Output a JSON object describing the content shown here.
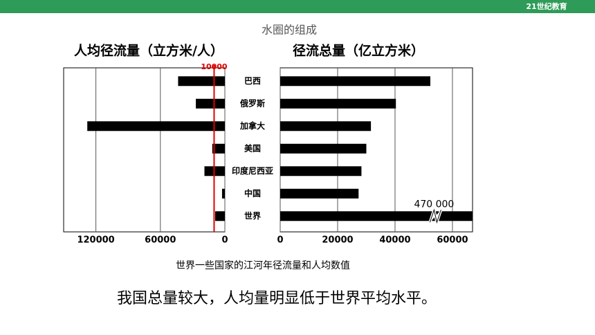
{
  "header": {
    "logo": "21世纪教育",
    "title": "水圈的组成"
  },
  "chart_data": [
    {
      "type": "bar",
      "orientation": "horizontal",
      "reversed": true,
      "title": "人均径流量（立方米/人）",
      "categories": [
        "巴西",
        "俄罗斯",
        "加拿大",
        "美国",
        "印度尼西亚",
        "中国",
        "世界"
      ],
      "values": [
        43500,
        27000,
        128000,
        11700,
        19000,
        2600,
        9000
      ],
      "color": "#000000",
      "xlim": [
        0,
        150000
      ],
      "xticks": [
        0,
        60000,
        120000
      ],
      "grid": true,
      "reference_line": 10000,
      "reference_color": "#e00000"
    },
    {
      "type": "bar",
      "orientation": "horizontal",
      "reversed": false,
      "title": "径流总量（亿立方米）",
      "values": [
        52300,
        40300,
        31600,
        30000,
        28300,
        27300,
        470000
      ],
      "value_labels": [
        null,
        null,
        null,
        null,
        null,
        null,
        "470 000"
      ],
      "color": "#000000",
      "xlim": [
        0,
        67000
      ],
      "xticks": [
        0,
        20000,
        40000,
        60000
      ],
      "grid": true
    }
  ],
  "caption": "世界一些国家的江河年径流量和人均数值",
  "conclusion": "我国总量较大，人均量明显低于世界平均水平。"
}
